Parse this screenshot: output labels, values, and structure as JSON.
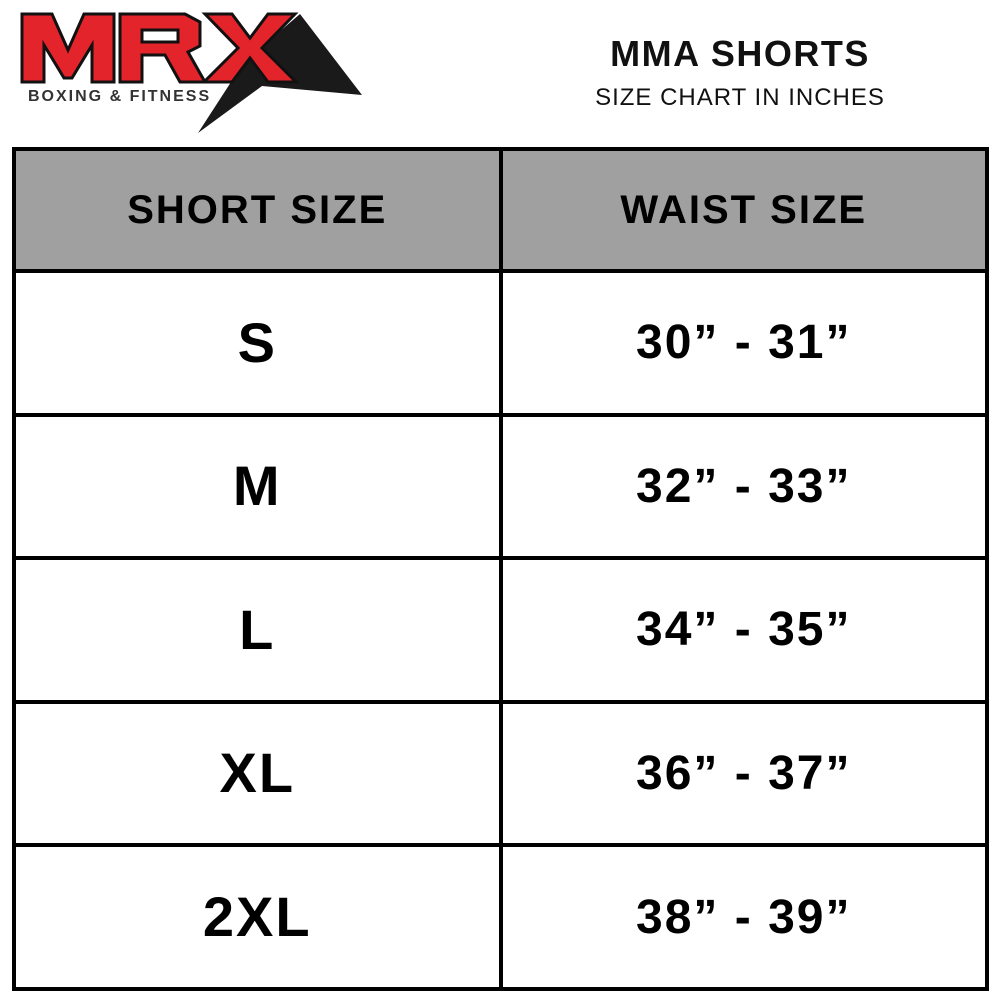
{
  "logo": {
    "brand": "MRX",
    "tagline": "BOXING & FITNESS",
    "colors": {
      "red": "#e3242b",
      "black": "#1a1a1a"
    }
  },
  "header": {
    "title": "MMA SHORTS",
    "subtitle": "SIZE CHART IN INCHES"
  },
  "table": {
    "columns": [
      "SHORT SIZE",
      "WAIST SIZE"
    ],
    "rows": [
      {
        "size": "S",
        "waist": "30” - 31”"
      },
      {
        "size": "M",
        "waist": "32” - 33”"
      },
      {
        "size": "L",
        "waist": "34” - 35”"
      },
      {
        "size": "XL",
        "waist": "36” - 37”"
      },
      {
        "size": "2XL",
        "waist": "38” - 39”"
      }
    ],
    "header_bg": "#a0a0a0"
  }
}
